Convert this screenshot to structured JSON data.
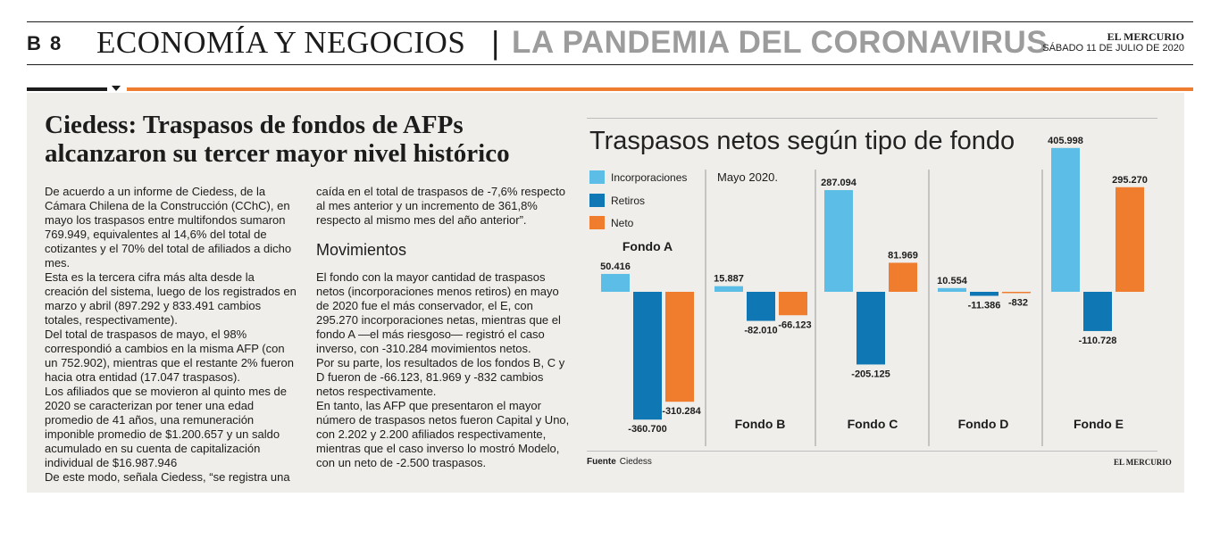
{
  "header": {
    "page_number": "B 8",
    "section": "ECONOMÍA Y NEGOCIOS",
    "separator": "|",
    "topic": "LA PANDEMIA DEL CORONAVIRUS",
    "brand": "EL MERCURIO",
    "date": "SÁBADO 11 DE JULIO DE 2020"
  },
  "article": {
    "headline": "Ciedess: Traspasos de fondos de AFPs alcanzaron su tercer mayor nivel histórico",
    "col1": [
      "De acuerdo a un informe de Ciedess, de la Cámara Chilena de la Construcción (CChC), en mayo los traspasos entre multifondos sumaron 769.949, equivalentes al 14,6% del total de cotizantes y el 70% del total de afiliados a dicho mes.",
      "Esta es la tercera cifra más alta desde la creación del sistema, luego de los registrados en marzo y abril (897.292 y 833.491 cambios totales, respectivamente).",
      "Del total de traspasos de mayo, el 98% correspondió a cambios en la misma AFP (con un 752.902), mientras que el restante 2% fueron hacia otra entidad (17.047 traspasos).",
      "Los afiliados que se movieron al quinto mes de 2020 se caracterizan por tener una edad promedio de 41 años, una remuneración imponible promedio de $1.200.657 y un saldo acumulado en su cuenta de capitalización individual de $16.987.946",
      "De este modo, señala Ciedess, “se registra una"
    ],
    "col2_intro": "caída en el total de traspasos de -7,6% respecto al mes anterior y un incremento de 361,8% respecto al mismo mes del año anterior”.",
    "subhead": "Movimientos",
    "col2": [
      "El fondo con la mayor cantidad de traspasos netos (incorporaciones menos retiros) en mayo de 2020 fue el más conservador, el E, con 295.270 incorporaciones netas, mientras que el fondo A —el más riesgoso— registró el caso inverso, con -310.284 movimientos netos.",
      "Por su parte, los resultados de los fondos B, C y D fueron de -66.123, 81.969 y -832 cambios netos respectivamente.",
      "En tanto, las AFP que presentaron el mayor número de traspasos netos fueron Capital y Uno, con 2.202 y 2.200 afiliados respectivamente, mientras que el caso inverso lo mostró Modelo, con un neto de -2.500 traspasos."
    ]
  },
  "chart_data": {
    "type": "bar",
    "title": "Traspasos netos según tipo de fondo",
    "subtitle": "Mayo 2020.",
    "categories": [
      "Fondo A",
      "Fondo B",
      "Fondo C",
      "Fondo D",
      "Fondo E"
    ],
    "series": [
      {
        "name": "Incorporaciones",
        "color": "#5cbde6",
        "values": [
          50416,
          15887,
          287094,
          10554,
          405998
        ],
        "labels": [
          "50.416",
          "15.887",
          "287.094",
          "10.554",
          "405.998"
        ]
      },
      {
        "name": "Retiros",
        "color": "#0f78b4",
        "values": [
          -360700,
          -82010,
          -205125,
          -11386,
          -110728
        ],
        "labels": [
          "-360.700",
          "-82.010",
          "-205.125",
          "-11.386",
          "-110.728"
        ]
      },
      {
        "name": "Neto",
        "color": "#f07d2e",
        "values": [
          -310284,
          -66123,
          81969,
          -832,
          295270
        ],
        "labels": [
          "-310.284",
          "-66.123",
          "81.969",
          "-832",
          "295.270"
        ]
      }
    ],
    "legend": "top-left",
    "grid": false,
    "source_label": "Fuente",
    "source": "Ciedess",
    "credit": "EL MERCURIO"
  }
}
